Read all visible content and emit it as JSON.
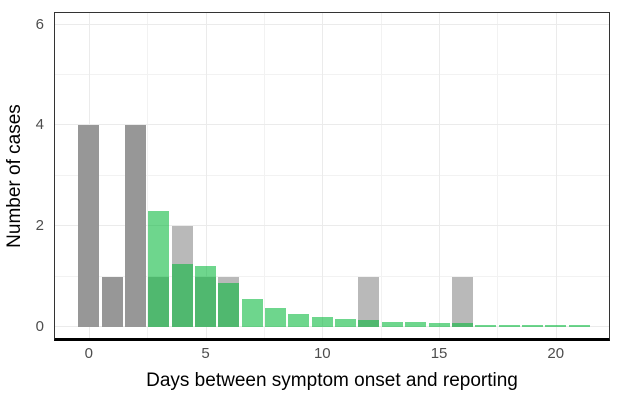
{
  "colors": {
    "background": "#ffffff",
    "panel_border": "#333333",
    "axis_line": "#000000",
    "grid_major": "#ebebeb",
    "grid_minor": "#f2f2f2",
    "tick_label": "#4d4d4d",
    "axis_title": "#000000",
    "gray_bar_dark": "#979797",
    "gray_bar_light": "#b9b9b9",
    "green_bar_over_white": "#6ed68c",
    "green_bar_over_gray": "#50b86e"
  },
  "chart_data": {
    "type": "bar",
    "subtype": "overlaid-histogram",
    "title": "",
    "xlabel": "Days between symptom onset and reporting",
    "ylabel": "Number of cases",
    "x": [
      0,
      1,
      2,
      3,
      4,
      5,
      6,
      7,
      8,
      9,
      10,
      11,
      12,
      13,
      14,
      15,
      16,
      17,
      18,
      19,
      20,
      21
    ],
    "series": [
      {
        "name": "gray_bars",
        "values": [
          4,
          1,
          4,
          1,
          2,
          1,
          1,
          0,
          0,
          0,
          0,
          0,
          1,
          0,
          0,
          0,
          1,
          0,
          0,
          0,
          0,
          0
        ],
        "color": "#b9b9b9",
        "color_dark": "#979797",
        "dark_x": [
          0,
          1,
          2
        ]
      },
      {
        "name": "green_bars",
        "values": [
          0,
          0,
          0,
          2.3,
          1.25,
          1.2,
          0.87,
          0.55,
          0.37,
          0.26,
          0.19,
          0.15,
          0.13,
          0.1,
          0.09,
          0.07,
          0.07,
          0.04,
          0.04,
          0.03,
          0.03,
          0.03
        ],
        "color": "rgba(0,183,54,0.57)"
      }
    ],
    "xticks": [
      0,
      5,
      10,
      15,
      20
    ],
    "xticks_minor": [
      2.5,
      7.5,
      12.5,
      17.5
    ],
    "yticks": [
      0,
      2,
      4,
      6
    ],
    "yticks_minor": [
      1,
      3,
      5
    ],
    "xlim": [
      -1.45,
      22.28
    ],
    "ylim": [
      -0.22,
      6.23
    ],
    "bar_width": 0.9,
    "grid": "major+minor",
    "legend": false
  }
}
